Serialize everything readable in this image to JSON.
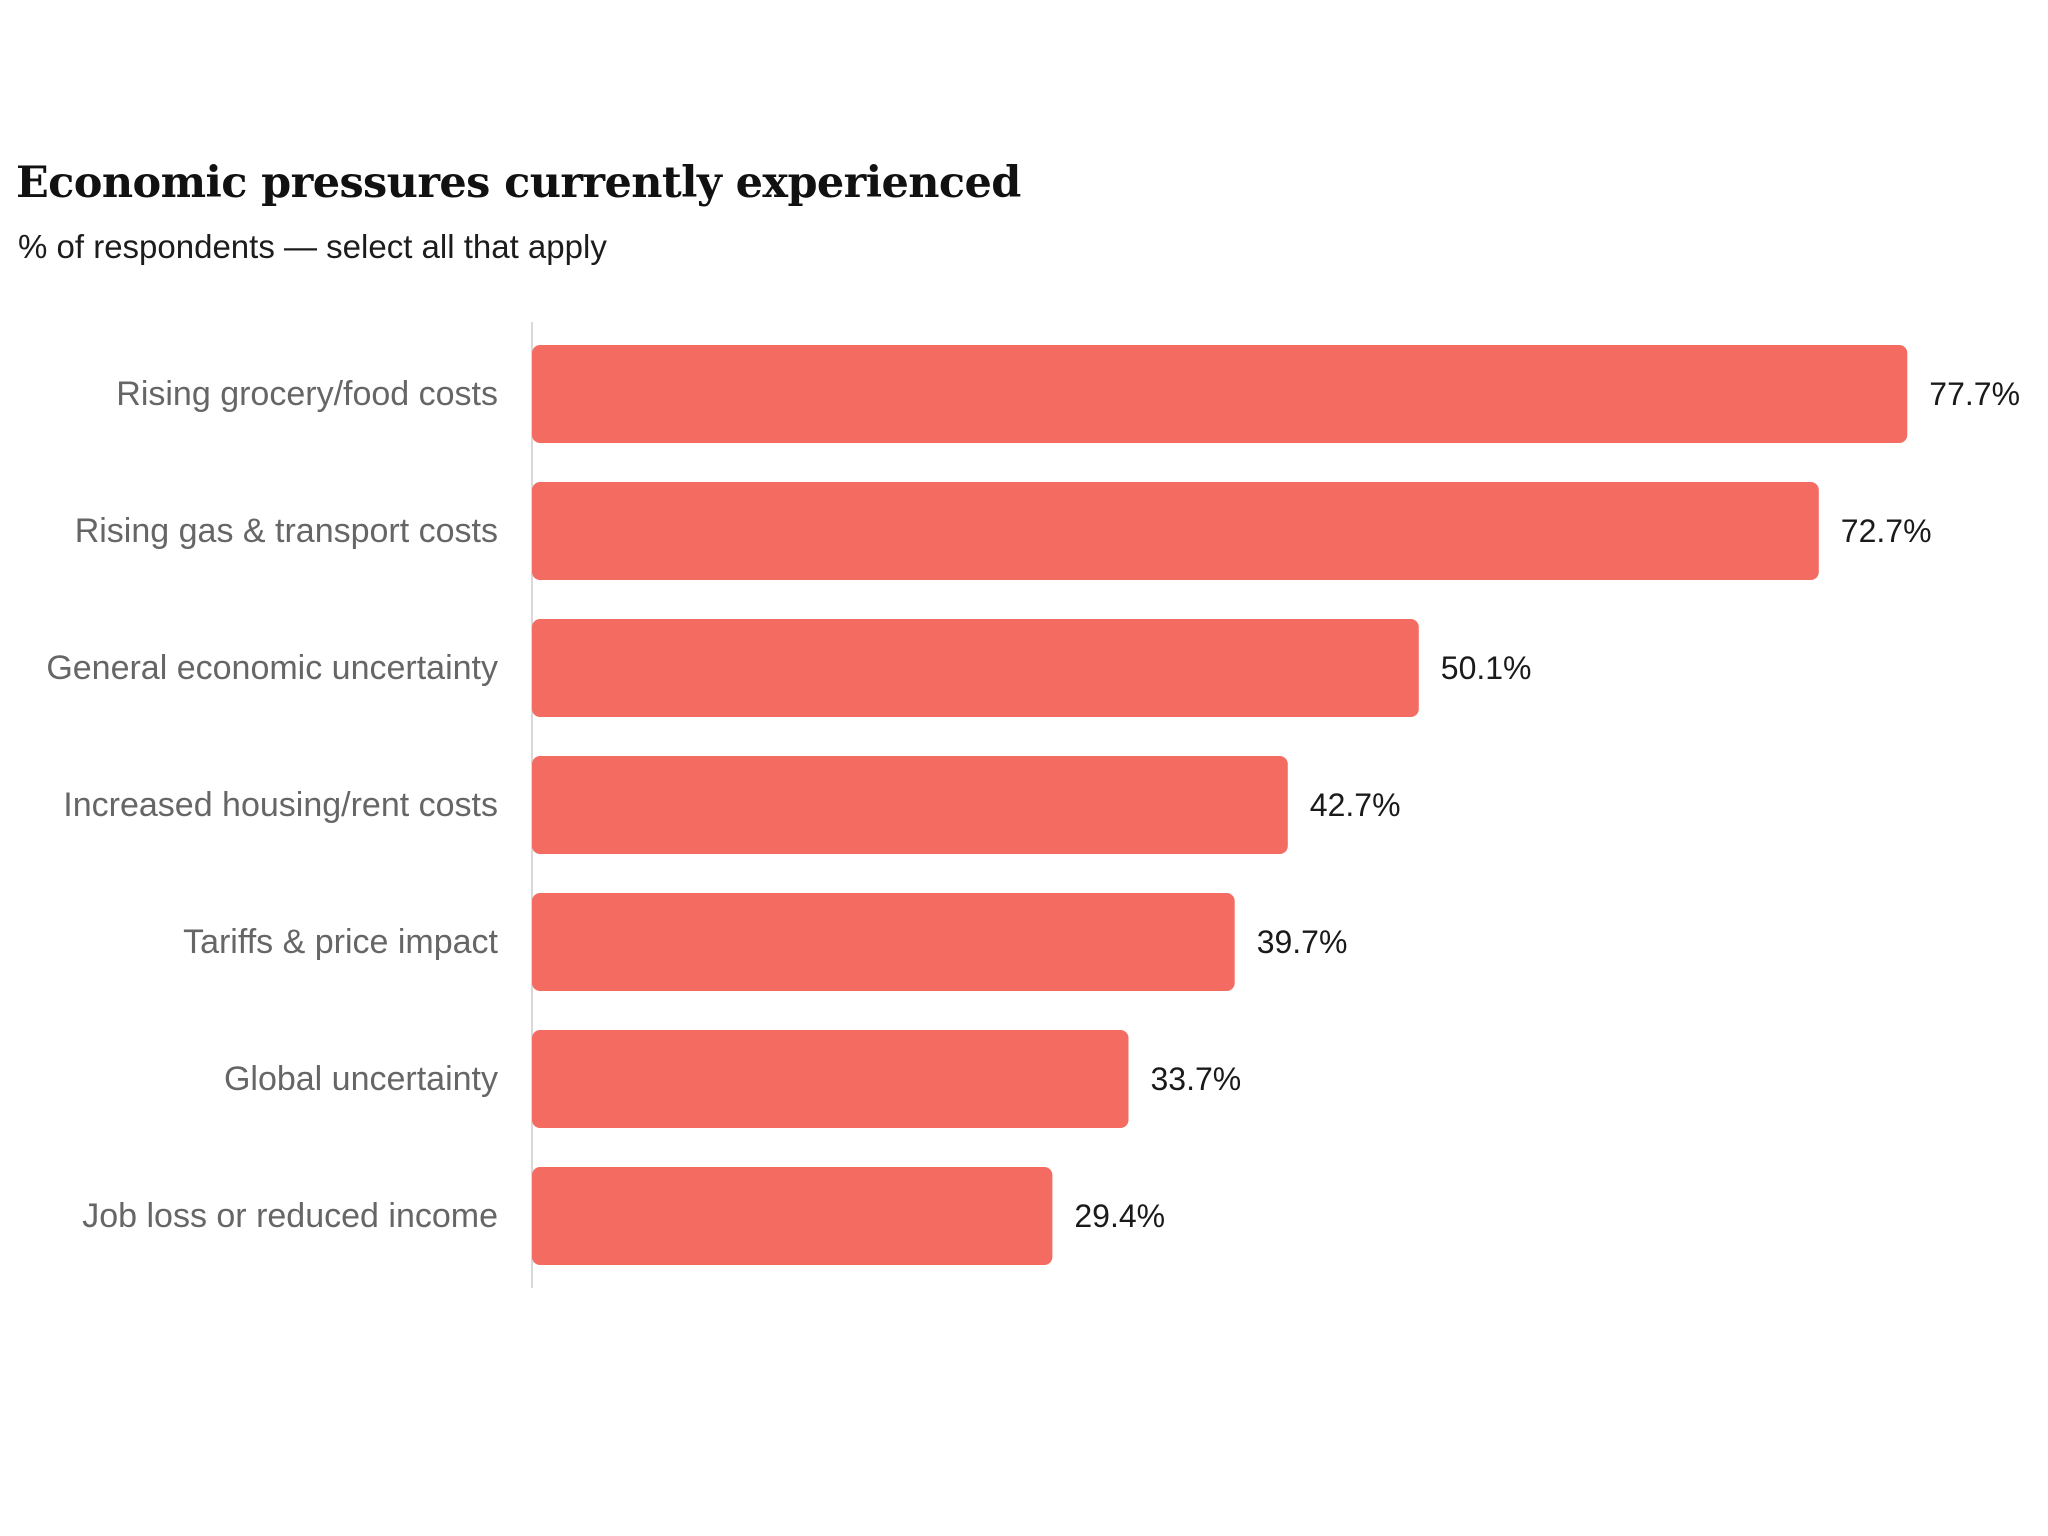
{
  "chart_data": {
    "type": "bar",
    "orientation": "horizontal",
    "title": "Economic pressures currently experienced",
    "subtitle": "% of respondents — select all that apply",
    "categories": [
      "Rising grocery/food costs",
      "Rising gas & transport costs",
      "General economic uncertainty",
      "Increased housing/rent costs",
      "Tariffs & price impact",
      "Global uncertainty",
      "Job loss or reduced income"
    ],
    "values": [
      77.7,
      72.7,
      50.1,
      42.7,
      39.7,
      33.7,
      29.4
    ],
    "value_labels": [
      "77.7%",
      "72.7%",
      "50.1%",
      "42.7%",
      "39.7%",
      "33.7%",
      "29.4%"
    ],
    "unit": "%",
    "xlim": [
      0,
      100
    ],
    "grid": false,
    "legend": "none",
    "bar_color": "#f46b61",
    "axis_color": "#d9d9d9"
  }
}
